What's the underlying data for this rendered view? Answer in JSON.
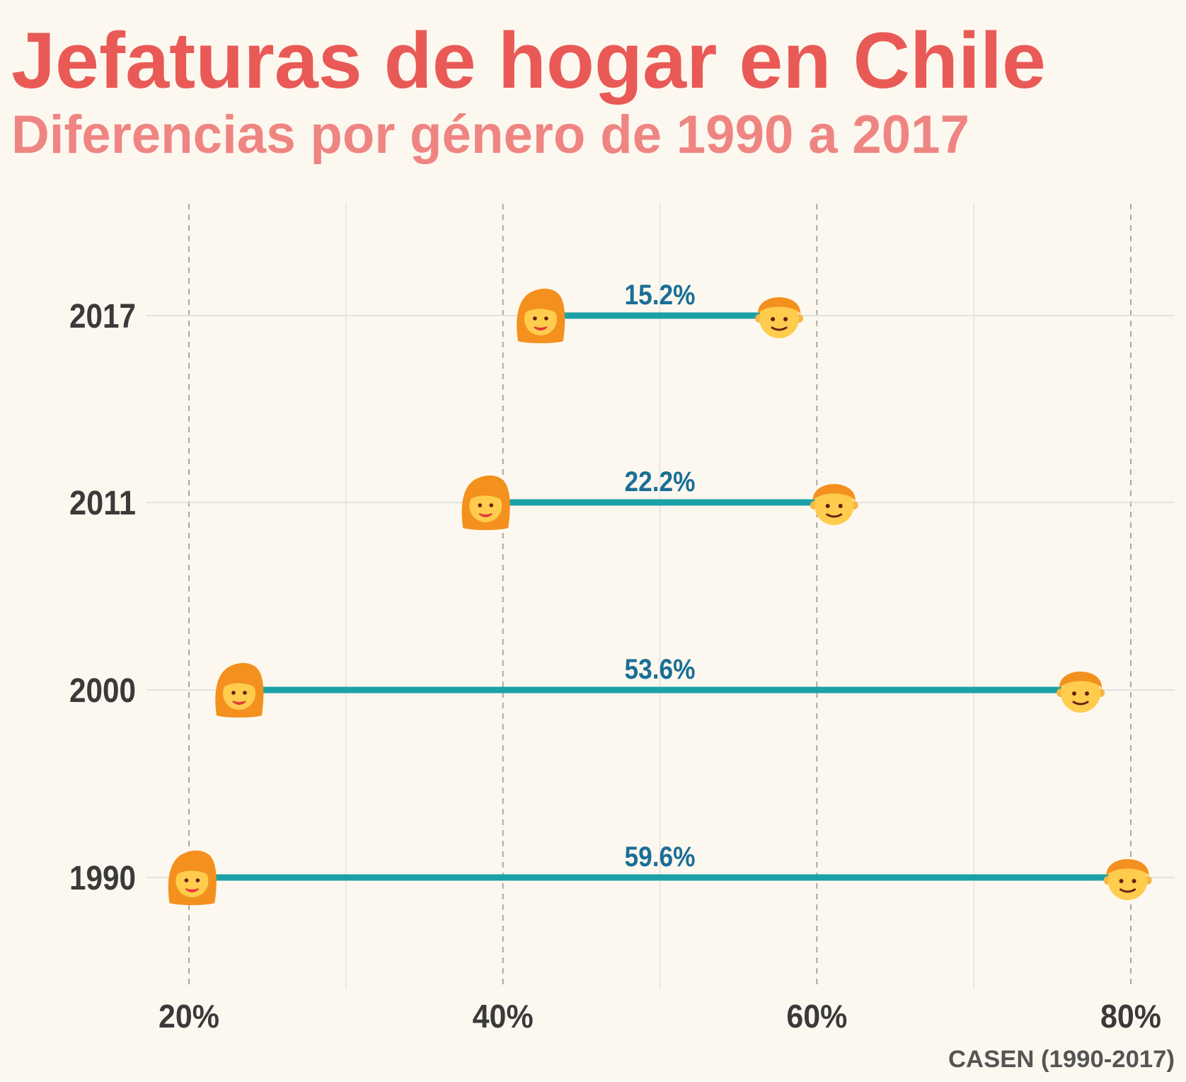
{
  "title": "Jefaturas de hogar en Chile",
  "subtitle": "Diferencias por género de 1990 a 2017",
  "caption": "CASEN (1990-2017)",
  "colors": {
    "background": "#fdf8ef",
    "title": "#e95a57",
    "subtitle": "#ef8582",
    "segment": "#1aa1a6",
    "gap_label": "#1a6e97",
    "axis_text": "#3a3a3a",
    "grid": "#e2e2e2",
    "dashed": "#a8a8a8"
  },
  "chart_data": {
    "type": "dumbbell",
    "xlim": [
      0.17,
      0.82
    ],
    "x_ticks": [
      0.2,
      0.4,
      0.6,
      0.8
    ],
    "x_tick_labels": [
      "20%",
      "40%",
      "60%",
      "80%"
    ],
    "categories": [
      "2017",
      "2011",
      "2000",
      "1990"
    ],
    "series": [
      {
        "marker": "woman-icon",
        "values": [
          0.424,
          0.389,
          0.232,
          0.202
        ]
      },
      {
        "marker": "man-icon",
        "values": [
          0.576,
          0.611,
          0.768,
          0.798
        ]
      }
    ],
    "gap_labels": [
      "15.2%",
      "22.2%",
      "53.6%",
      "59.6%"
    ],
    "grid": true
  }
}
